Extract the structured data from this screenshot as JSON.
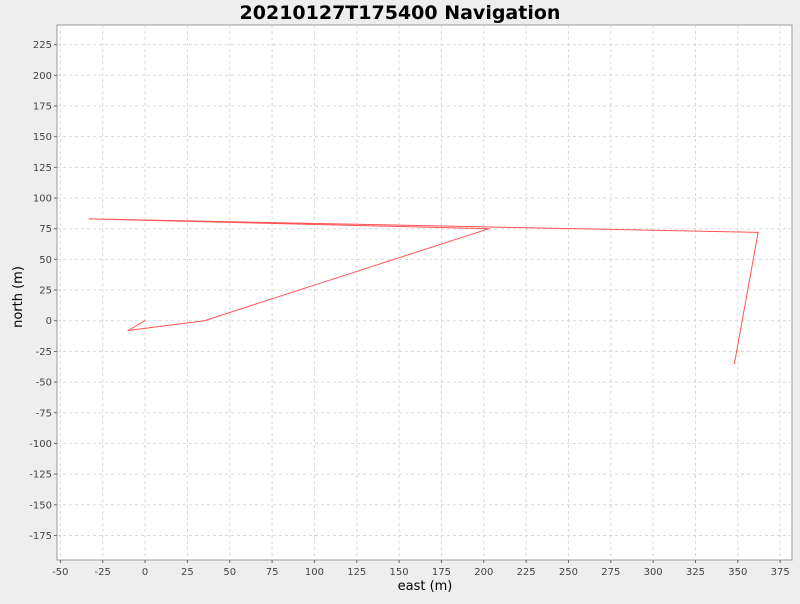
{
  "chart_data": {
    "type": "line",
    "title": "20210127T175400 Navigation",
    "xlabel": "east (m)",
    "ylabel": "north (m)",
    "xlim": [
      -52,
      382
    ],
    "ylim": [
      -195,
      241
    ],
    "x_ticks": [
      -50,
      -25,
      0,
      25,
      50,
      75,
      100,
      125,
      150,
      175,
      200,
      225,
      250,
      275,
      300,
      325,
      350,
      375
    ],
    "y_ticks": [
      225,
      200,
      175,
      150,
      125,
      100,
      75,
      50,
      25,
      0,
      -25,
      -50,
      -75,
      -100,
      -125,
      -150,
      -175
    ],
    "grid": true,
    "series": [
      {
        "color": "#ff5555",
        "points": [
          {
            "x": 0,
            "y": 0
          },
          {
            "x": -10,
            "y": -8
          },
          {
            "x": 35,
            "y": 0
          },
          {
            "x": 203,
            "y": 75
          },
          {
            "x": -33,
            "y": 83
          },
          {
            "x": 362,
            "y": 72
          },
          {
            "x": 348,
            "y": -35
          }
        ]
      }
    ]
  }
}
